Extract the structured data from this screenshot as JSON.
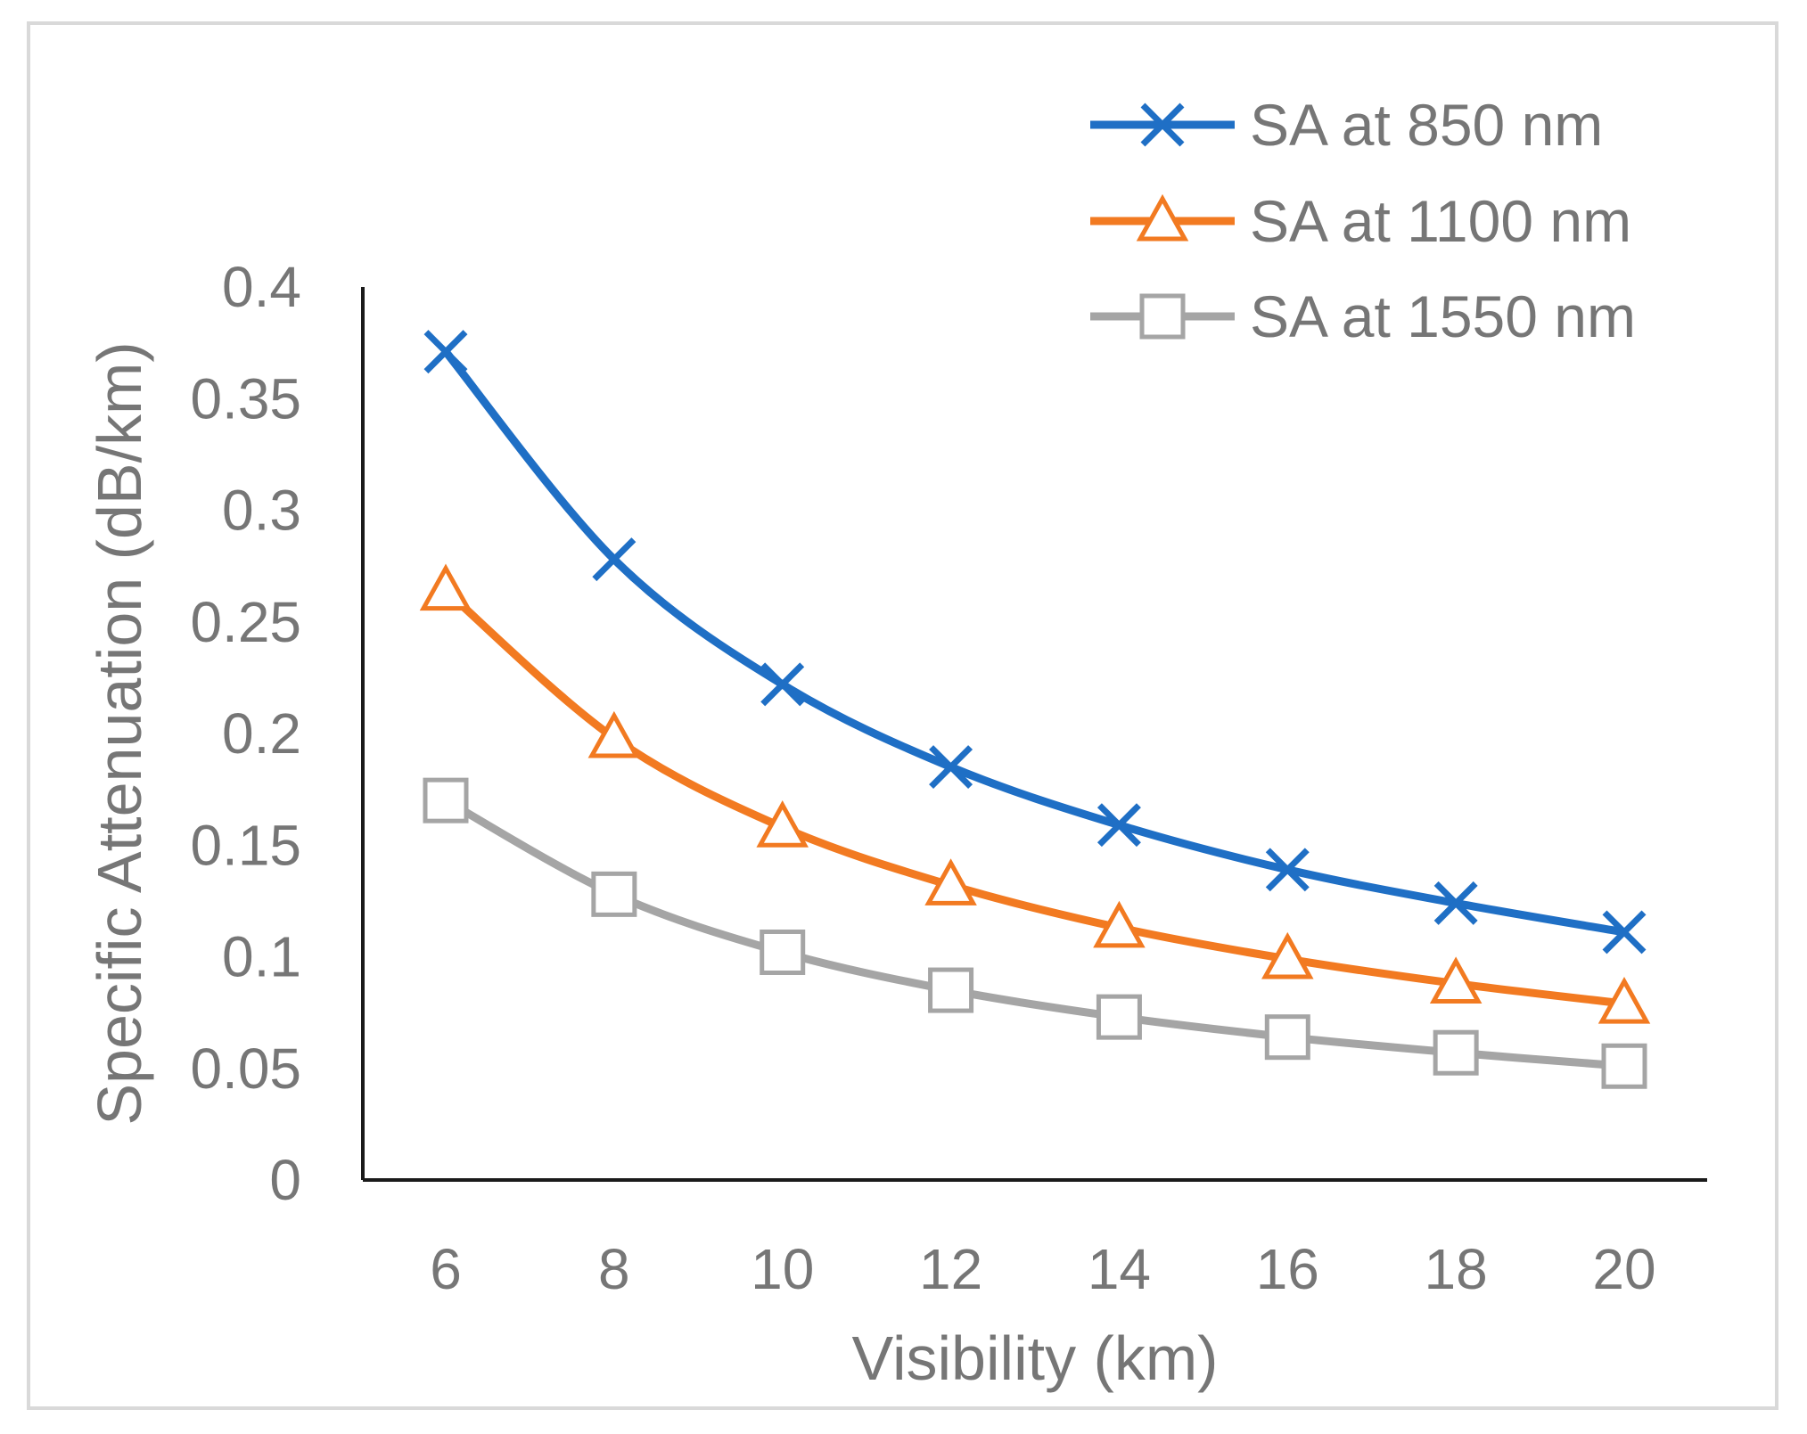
{
  "chart_data": {
    "type": "line",
    "title": "",
    "xlabel": "Visibility (km)",
    "ylabel": "Specific Attenuation (dB/km)",
    "x": [
      6,
      8,
      10,
      12,
      14,
      16,
      18,
      20
    ],
    "x_tick_labels": [
      "6",
      "8",
      "10",
      "12",
      "14",
      "16",
      "18",
      "20"
    ],
    "ylim": [
      0,
      0.4
    ],
    "y_ticks": [
      0,
      0.05,
      0.1,
      0.15,
      0.2,
      0.25,
      0.3,
      0.35,
      0.4
    ],
    "y_tick_labels": [
      "0",
      "0.05",
      "0.1",
      "0.15",
      "0.2",
      "0.25",
      "0.3",
      "0.35",
      "0.4"
    ],
    "grid": false,
    "legend_position": "top-right",
    "series": [
      {
        "name": "SA at 850 nm",
        "color": "#1f6fc5",
        "marker": "x",
        "values": [
          0.371,
          0.278,
          0.222,
          0.185,
          0.159,
          0.139,
          0.124,
          0.111
        ]
      },
      {
        "name": "SA at 1100 nm",
        "color": "#f27a21",
        "marker": "triangle",
        "values": [
          0.264,
          0.198,
          0.158,
          0.132,
          0.113,
          0.099,
          0.088,
          0.079
        ]
      },
      {
        "name": "SA at 1550 nm",
        "color": "#a5a5a5",
        "marker": "square",
        "values": [
          0.17,
          0.128,
          0.102,
          0.085,
          0.073,
          0.064,
          0.057,
          0.051
        ]
      }
    ]
  }
}
